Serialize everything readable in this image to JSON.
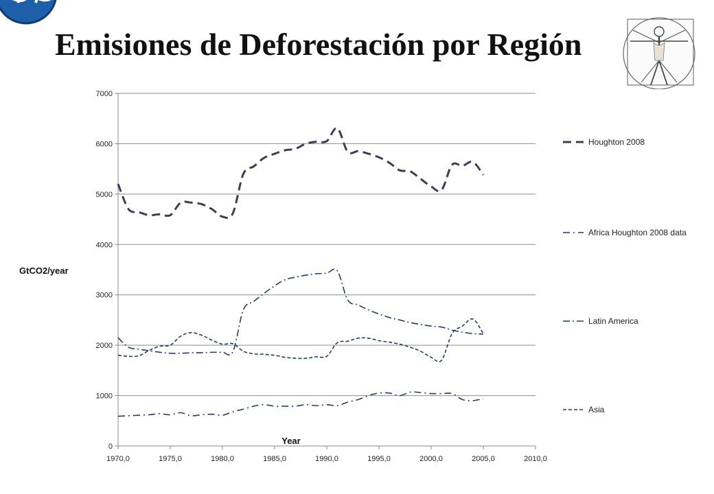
{
  "page": {
    "title": "Emisiones de Deforestación por Región"
  },
  "icons": {
    "logo": "puzzle-globe-logo",
    "illustration": "vitruvian-man-icon"
  },
  "colors": {
    "houghton": "#3a3f55",
    "regions": "#1f3d6b",
    "grid": "#8c8c8c"
  },
  "chart_data": {
    "type": "line",
    "xlabel": "Year",
    "ylabel": "GtCO2/year",
    "xlim": [
      1970,
      2010
    ],
    "ylim": [
      0,
      7000
    ],
    "x_ticks": [
      "1970,0",
      "1975,0",
      "1980,0",
      "1985,0",
      "1990,0",
      "1995,0",
      "2000,0",
      "2005,0",
      "2010,0"
    ],
    "y_ticks": [
      "0",
      "1000",
      "2000",
      "3000",
      "4000",
      "5000",
      "6000",
      "7000"
    ],
    "grid": "horizontal",
    "legend_position": "right",
    "x": [
      1970,
      1971,
      1972,
      1973,
      1974,
      1975,
      1976,
      1977,
      1978,
      1979,
      1980,
      1981,
      1982,
      1983,
      1984,
      1985,
      1986,
      1987,
      1988,
      1989,
      1990,
      1991,
      1992,
      1993,
      1994,
      1995,
      1996,
      1997,
      1998,
      1999,
      2000,
      2001,
      2002,
      2003,
      2004,
      2005
    ],
    "series": [
      {
        "name": "Houghton 2008",
        "color": "#3a3f55",
        "dash": "12,7",
        "width": 3,
        "values": [
          5200,
          4700,
          4640,
          4580,
          4600,
          4580,
          4830,
          4830,
          4800,
          4700,
          4550,
          4620,
          5400,
          5550,
          5720,
          5800,
          5870,
          5900,
          6000,
          6040,
          6050,
          6310,
          5840,
          5850,
          5800,
          5730,
          5620,
          5470,
          5450,
          5300,
          5150,
          5080,
          5580,
          5560,
          5640,
          5380
        ]
      },
      {
        "name": "Africa Houghton 2008 data",
        "color": "#1f3d6b",
        "dash": "10,5,2,5",
        "width": 1.6,
        "values": [
          590,
          600,
          610,
          620,
          640,
          620,
          660,
          600,
          620,
          630,
          610,
          680,
          730,
          790,
          820,
          790,
          790,
          790,
          820,
          800,
          820,
          800,
          870,
          920,
          1000,
          1050,
          1050,
          1000,
          1070,
          1060,
          1040,
          1040,
          1040,
          920,
          900,
          940
        ]
      },
      {
        "name": "Latin America",
        "color": "#1f3d6b",
        "dash": "10,4,2,4",
        "width": 1.6,
        "values": [
          2150,
          1960,
          1920,
          1890,
          1860,
          1840,
          1840,
          1850,
          1850,
          1860,
          1860,
          1870,
          2700,
          2870,
          3030,
          3180,
          3300,
          3350,
          3390,
          3420,
          3430,
          3480,
          2900,
          2800,
          2700,
          2620,
          2550,
          2500,
          2450,
          2410,
          2380,
          2360,
          2300,
          2260,
          2230,
          2220
        ]
      },
      {
        "name": "Asia",
        "color": "#1f3d6b",
        "dash": "5,3",
        "width": 1.6,
        "values": [
          1800,
          1780,
          1790,
          1900,
          1980,
          2000,
          2180,
          2250,
          2200,
          2100,
          2020,
          2030,
          1880,
          1830,
          1820,
          1800,
          1760,
          1740,
          1740,
          1770,
          1780,
          2050,
          2080,
          2140,
          2140,
          2090,
          2060,
          2020,
          1960,
          1880,
          1760,
          1700,
          2230,
          2380,
          2520,
          2230
        ]
      }
    ]
  }
}
